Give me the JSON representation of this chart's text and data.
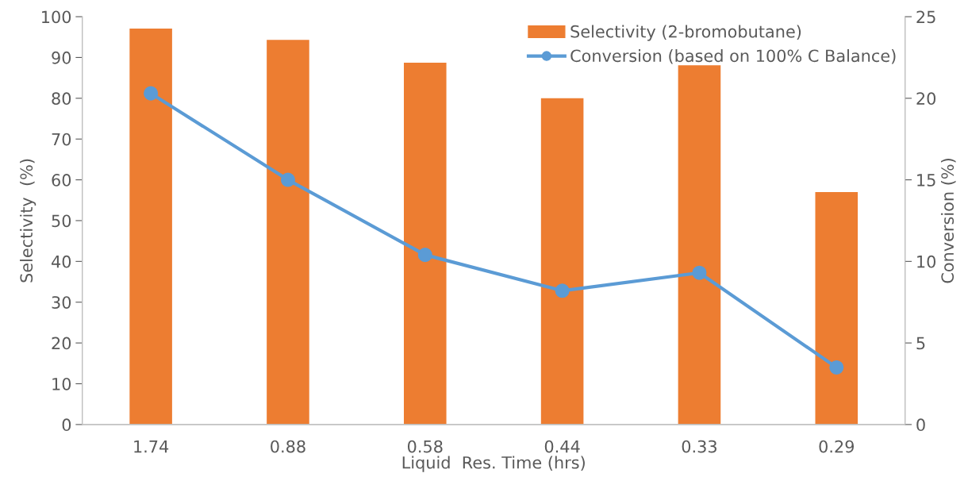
{
  "chart_data": {
    "type": "bar",
    "xlabel": "Liquid  Res. Time (hrs)",
    "ylabel": "Selectivity  (%)",
    "y2label": "Conversion (%)",
    "categories": [
      "1.74",
      "0.88",
      "0.58",
      "0.44",
      "0.33",
      "0.29"
    ],
    "series": [
      {
        "name": "Selectivity (2-bromobutane)",
        "color": "#ed7d31",
        "values": [
          97.1,
          94.3,
          88.7,
          80.0,
          88.1,
          57.0
        ]
      },
      {
        "name": "Conversion (based on 100% C Balance)",
        "color": "#5b9bd5",
        "type": "line",
        "axis": "y2",
        "marker": "circle",
        "values": [
          20.3,
          15.0,
          10.4,
          8.2,
          9.3,
          3.5
        ]
      }
    ],
    "ylim": [
      0,
      100
    ],
    "yticks": [
      0,
      10,
      20,
      30,
      40,
      50,
      60,
      70,
      80,
      90,
      100
    ],
    "y2lim": [
      0,
      25
    ],
    "y2ticks": [
      0,
      5,
      10,
      15,
      20,
      25
    ],
    "grid": false,
    "legend": "top right"
  }
}
